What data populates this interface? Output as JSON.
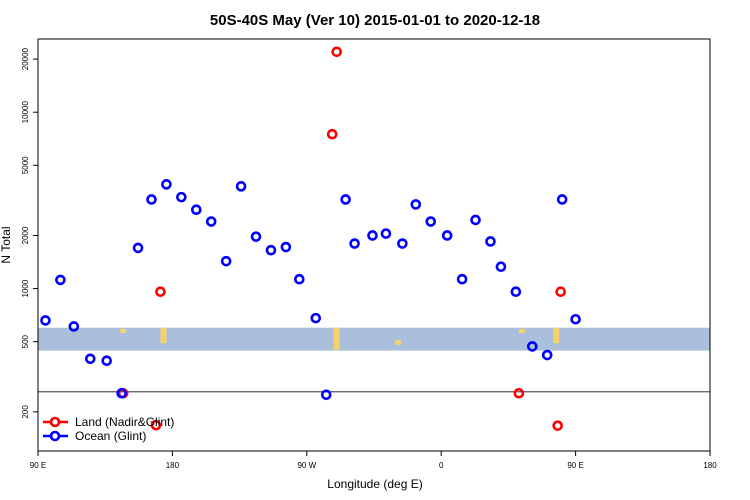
{
  "chart_data": {
    "type": "scatter",
    "title": "50S-40S May (Ver 10)   2015-01-01 to 2020-12-18",
    "xlabel": "Longitude (deg E)",
    "ylabel": "N Total",
    "y_scale": "log",
    "xlim": [
      90,
      450
    ],
    "ylim": [
      120,
      26000
    ],
    "x_ticks": [
      {
        "value": 90,
        "label": "90 E"
      },
      {
        "value": 180,
        "label": "180"
      },
      {
        "value": 270,
        "label": "90 W"
      },
      {
        "value": 360,
        "label": "0"
      },
      {
        "value": 450,
        "label": "90 E"
      },
      {
        "value": 540,
        "label": "180"
      }
    ],
    "y_ticks": [
      {
        "value": 200,
        "label": "200"
      },
      {
        "value": 500,
        "label": "500"
      },
      {
        "value": 1000,
        "label": "1000"
      },
      {
        "value": 2000,
        "label": "2000"
      },
      {
        "value": 5000,
        "label": "5000"
      },
      {
        "value": 10000,
        "label": "10000"
      },
      {
        "value": 20000,
        "label": "20000"
      }
    ],
    "x_display": {
      "start": 90,
      "end": 540
    },
    "band": {
      "y_low": 445,
      "y_high": 600,
      "color": "#a9bfdc"
    },
    "reference_line_y": 260,
    "land_patch_color": "#f5d36a",
    "land_patches": [
      {
        "x": 147,
        "y_low": 560,
        "y_high": 590
      },
      {
        "x": 174,
        "y_low": 490,
        "y_high": 600
      },
      {
        "x": 290,
        "y_low": 450,
        "y_high": 600
      },
      {
        "x": 331,
        "y_low": 480,
        "y_high": 510
      },
      {
        "x": 414,
        "y_low": 560,
        "y_high": 590
      },
      {
        "x": 437,
        "y_low": 490,
        "y_high": 600
      }
    ],
    "legend": {
      "position": "bottom-left"
    },
    "series": [
      {
        "name": "Land (Nadir&Glint)",
        "color": "#ff0000",
        "points": [
          {
            "x": 147,
            "y": 255
          },
          {
            "x": 169,
            "y": 168
          },
          {
            "x": 172,
            "y": 960
          },
          {
            "x": 287,
            "y": 7500
          },
          {
            "x": 290,
            "y": 22000
          },
          {
            "x": 412,
            "y": 255
          },
          {
            "x": 438,
            "y": 167
          },
          {
            "x": 440,
            "y": 960
          }
        ]
      },
      {
        "name": "Ocean (Glint)",
        "color": "#0000ff",
        "points": [
          {
            "x": 95,
            "y": 660
          },
          {
            "x": 105,
            "y": 1120
          },
          {
            "x": 114,
            "y": 610
          },
          {
            "x": 125,
            "y": 400
          },
          {
            "x": 136,
            "y": 390
          },
          {
            "x": 146,
            "y": 255
          },
          {
            "x": 157,
            "y": 1700
          },
          {
            "x": 166,
            "y": 3200
          },
          {
            "x": 176,
            "y": 3900
          },
          {
            "x": 186,
            "y": 3300
          },
          {
            "x": 196,
            "y": 2800
          },
          {
            "x": 206,
            "y": 2400
          },
          {
            "x": 216,
            "y": 1430
          },
          {
            "x": 226,
            "y": 3800
          },
          {
            "x": 236,
            "y": 1970
          },
          {
            "x": 246,
            "y": 1650
          },
          {
            "x": 256,
            "y": 1720
          },
          {
            "x": 265,
            "y": 1130
          },
          {
            "x": 276,
            "y": 680
          },
          {
            "x": 283,
            "y": 250
          },
          {
            "x": 296,
            "y": 3200
          },
          {
            "x": 302,
            "y": 1800
          },
          {
            "x": 314,
            "y": 2000
          },
          {
            "x": 323,
            "y": 2050
          },
          {
            "x": 334,
            "y": 1800
          },
          {
            "x": 343,
            "y": 3000
          },
          {
            "x": 353,
            "y": 2400
          },
          {
            "x": 364,
            "y": 2000
          },
          {
            "x": 374,
            "y": 1130
          },
          {
            "x": 383,
            "y": 2450
          },
          {
            "x": 393,
            "y": 1850
          },
          {
            "x": 400,
            "y": 1330
          },
          {
            "x": 410,
            "y": 960
          },
          {
            "x": 421,
            "y": 470
          },
          {
            "x": 431,
            "y": 420
          },
          {
            "x": 441,
            "y": 3200
          },
          {
            "x": 450,
            "y": 670
          }
        ]
      }
    ]
  }
}
